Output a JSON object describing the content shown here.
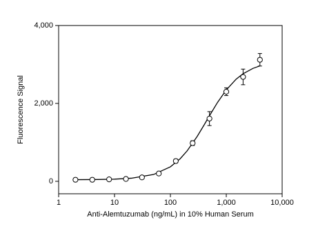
{
  "chart_data": {
    "type": "scatter",
    "x_label": "Anti-Alemtuzumab (ng/mL) in 10% Human Serum",
    "y_label": "Fluorescence Signal",
    "x": [
      2,
      4,
      8,
      16,
      31,
      62,
      125,
      250,
      500,
      1000,
      2000,
      4000
    ],
    "values": [
      40,
      40,
      50,
      60,
      100,
      200,
      520,
      980,
      1610,
      2300,
      2680,
      3120
    ],
    "errors": [
      40,
      40,
      40,
      40,
      40,
      40,
      50,
      60,
      180,
      100,
      200,
      160
    ],
    "fit": {
      "x": [
        2,
        5,
        10,
        20,
        50,
        100,
        150,
        200,
        300,
        400,
        500,
        700,
        1000,
        1500,
        2000,
        3000,
        4000
      ],
      "values": [
        42,
        46,
        55,
        79,
        175,
        372,
        581,
        784,
        1147,
        1444,
        1683,
        2029,
        2346,
        2622,
        2762,
        2899,
        2963
      ]
    },
    "color": "#000000",
    "xlog": true,
    "xlim": [
      1,
      10000
    ],
    "xticks": [
      1,
      10,
      100,
      {
        "value": 1000,
        "label": "1,000"
      },
      {
        "value": 10000,
        "label": "10,000"
      }
    ],
    "ylim": [
      -320,
      4000
    ],
    "yticks": [
      0,
      {
        "value": 2000,
        "label": "2,000"
      },
      {
        "value": 4000,
        "label": "4,000"
      }
    ]
  }
}
